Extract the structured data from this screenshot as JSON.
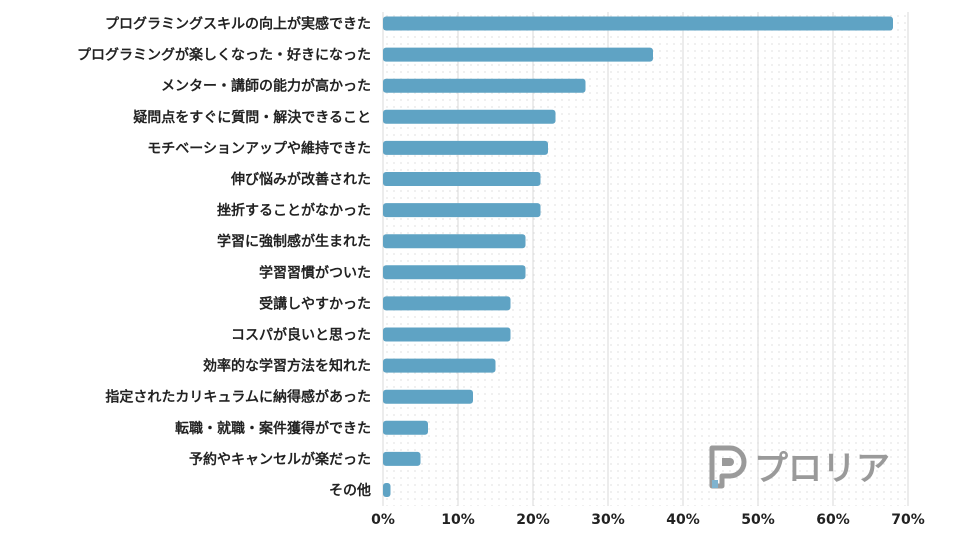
{
  "chart_data": {
    "type": "bar",
    "orientation": "horizontal",
    "categories": [
      "プログラミングスキルの向上が実感できた",
      "プログラミングが楽しくなった・好きになった",
      "メンター・講師の能力が高かった",
      "疑問点をすぐに質問・解決できること",
      "モチベーションアップや維持できた",
      "伸び悩みが改善された",
      "挫折することがなかった",
      "学習に強制感が生まれた",
      "学習習慣がついた",
      "受講しやすかった",
      "コスパが良いと思った",
      "効率的な学習方法を知れた",
      "指定されたカリキュラムに納得感があった",
      "転職・就職・案件獲得ができた",
      "予約やキャンセルが楽だった",
      "その他"
    ],
    "values": [
      68,
      36,
      27,
      23,
      22,
      21,
      21,
      19,
      19,
      17,
      17,
      15,
      12,
      6,
      5,
      1
    ],
    "unit": "%",
    "xlim": [
      0,
      70
    ],
    "xticks": [
      0,
      10,
      20,
      30,
      40,
      50,
      60,
      70
    ],
    "tick_labels": [
      "0%",
      "10%",
      "20%",
      "30%",
      "40%",
      "50%",
      "60%",
      "70%"
    ],
    "grid": true,
    "bar_color": "#5fa3c4",
    "title": "",
    "xlabel": "",
    "ylabel": ""
  },
  "watermark": {
    "text": "プロリア",
    "icon": "proria-logo-icon",
    "color": "#9a9a9a"
  }
}
